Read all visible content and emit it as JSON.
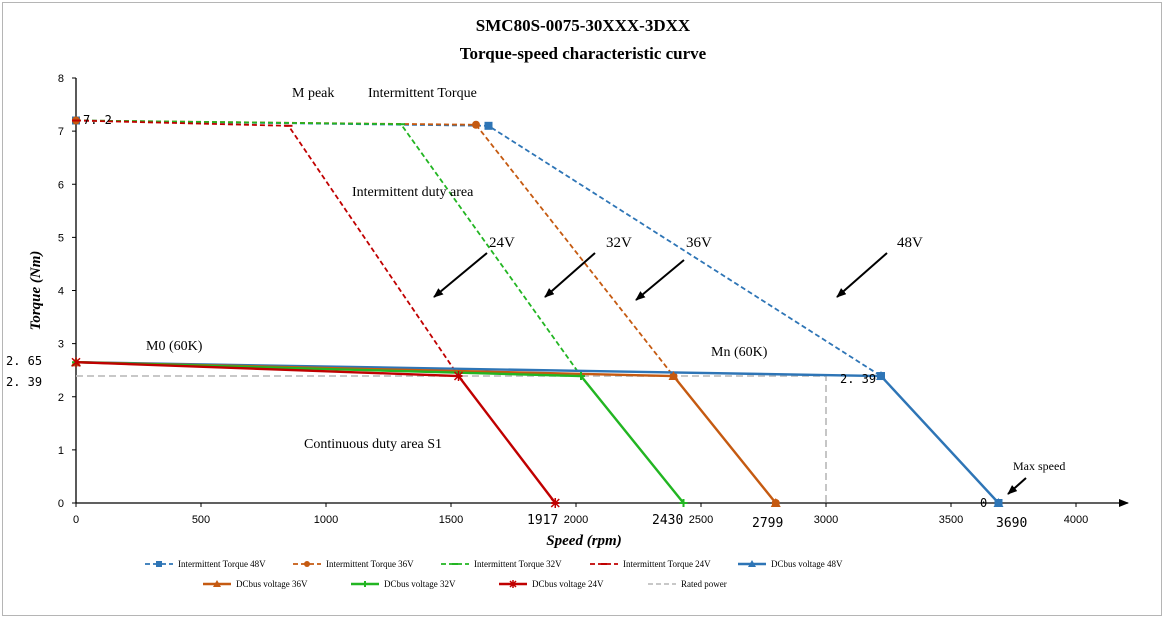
{
  "chart_data": {
    "type": "line",
    "title": "SMC80S-0075-30XXX-3DXX",
    "subtitle": "Torque-speed characteristic curve",
    "xlabel": "Speed (rpm)",
    "ylabel": "Torque (Nm)",
    "xlim": [
      0,
      4000
    ],
    "ylim": [
      0,
      8
    ],
    "xticks": [
      0,
      500,
      1000,
      1500,
      2000,
      2500,
      3000,
      3500,
      4000
    ],
    "yticks": [
      0,
      1,
      2,
      3,
      4,
      5,
      6,
      7,
      8
    ],
    "grid": false,
    "legend_position": "bottom",
    "colors": {
      "v48": "#2E75B6",
      "v36": "#C55A11",
      "v32": "#22B522",
      "v24": "#C00000",
      "rated": "#C0C0C0"
    },
    "series": [
      {
        "name": "Intermittent Torque 48V",
        "style": "dashed",
        "color": "v48",
        "marker": "square",
        "x": [
          0,
          1650,
          3220,
          3690
        ],
        "y": [
          7.2,
          7.1,
          2.39,
          0
        ]
      },
      {
        "name": "Intermittent Torque 36V",
        "style": "dashed",
        "color": "v36",
        "marker": "circle",
        "x": [
          0,
          1600,
          2390,
          2799
        ],
        "y": [
          7.2,
          7.12,
          2.39,
          0
        ]
      },
      {
        "name": "Intermittent Torque 32V",
        "style": "dashed",
        "color": "v32",
        "marker": "dash",
        "x": [
          0,
          1300,
          2020,
          2430
        ],
        "y": [
          7.2,
          7.13,
          2.39,
          0
        ]
      },
      {
        "name": "Intermittent Torque 24V",
        "style": "dashed",
        "color": "v24",
        "marker": "dash",
        "x": [
          0,
          850,
          1530,
          1917
        ],
        "y": [
          7.2,
          7.1,
          2.39,
          0
        ]
      },
      {
        "name": "DCbus voltage 48V",
        "style": "solid",
        "color": "v48",
        "marker": "triangle",
        "x": [
          0,
          3220,
          3690
        ],
        "y": [
          2.65,
          2.39,
          0
        ]
      },
      {
        "name": "DCbus voltage 36V",
        "style": "solid",
        "color": "v36",
        "marker": "triangle",
        "x": [
          0,
          2390,
          2799
        ],
        "y": [
          2.65,
          2.39,
          0
        ]
      },
      {
        "name": "DCbus voltage 32V",
        "style": "solid",
        "color": "v32",
        "marker": "plus",
        "x": [
          0,
          2020,
          2430
        ],
        "y": [
          2.65,
          2.39,
          0
        ]
      },
      {
        "name": "DCbus voltage 24V",
        "style": "solid",
        "color": "v24",
        "marker": "star",
        "x": [
          0,
          1530,
          1917
        ],
        "y": [
          2.65,
          2.39,
          0
        ]
      },
      {
        "name": "Rated power",
        "style": "dashed",
        "color": "rated",
        "marker": "none",
        "x": [
          0,
          3000,
          3000
        ],
        "y": [
          2.39,
          2.39,
          0
        ]
      }
    ],
    "annotations": {
      "m_peak": "M peak",
      "intermittent_torque": "Intermittent Torque",
      "intermittent_area": "Intermittent duty area",
      "continuous_area": "Continuous duty area S1",
      "m0": "M0 (60K)",
      "mn": "Mn (60K)",
      "max_speed": "Max speed",
      "v24": "24V",
      "v32": "32V",
      "v36": "36V",
      "v48": "48V",
      "peak_val": "7. 2",
      "m0_val": "2. 65",
      "rated_val_left": "2. 39",
      "rated_val_right": "2. 39",
      "speed_1917": "1917",
      "speed_2430": "2430",
      "speed_2799": "2799",
      "speed_3690": "3690",
      "zero_label": "0"
    }
  }
}
